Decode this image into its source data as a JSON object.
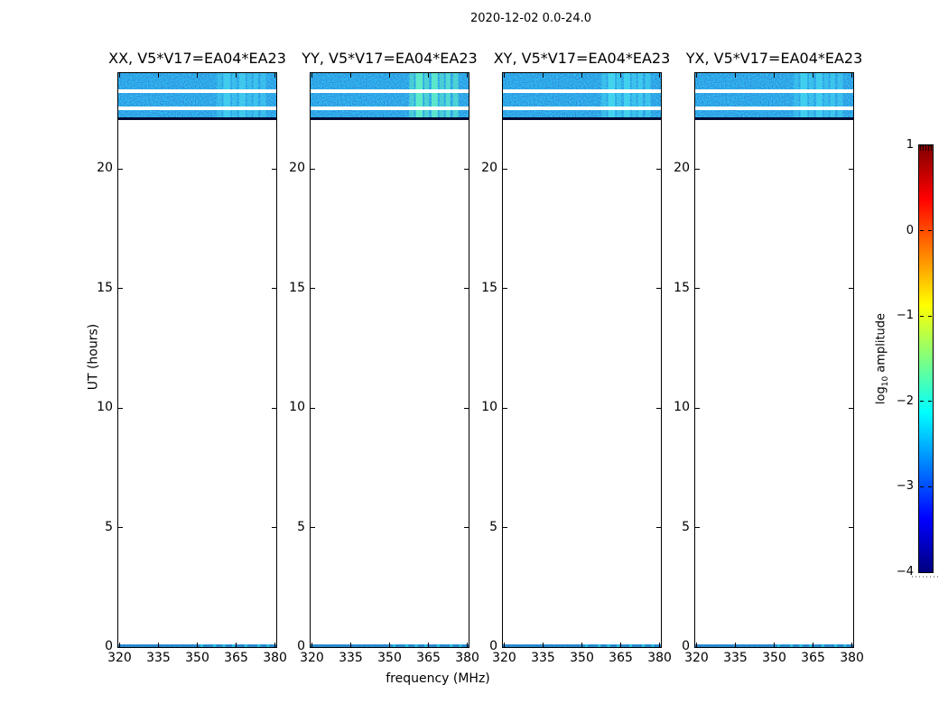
{
  "figure": {
    "suptitle": "2020-12-02 0.0-24.0",
    "xlabel": "frequency (MHz)",
    "ylabel": "UT (hours)",
    "x_ticks": [
      320,
      335,
      350,
      365,
      380
    ],
    "y_ticks": [
      0,
      5,
      10,
      15,
      20
    ],
    "x_range_mhz": [
      319.5,
      380.5
    ],
    "y_range_hours": [
      0,
      24
    ],
    "panels": [
      {
        "id": "XX",
        "title": "XX, V5*V17=EA04*EA23",
        "streak_color": "#45d4f0",
        "streak_gain": 1.0
      },
      {
        "id": "YY",
        "title": "YY, V5*V17=EA04*EA23",
        "streak_color": "#63f0c8",
        "streak_gain": 1.15
      },
      {
        "id": "XY",
        "title": "XY, V5*V17=EA04*EA23",
        "streak_color": "#48dcf0",
        "streak_gain": 1.05
      },
      {
        "id": "YX",
        "title": "YX, V5*V17=EA04*EA23",
        "streak_color": "#45d8f0",
        "streak_gain": 1.0
      }
    ],
    "colorbar": {
      "label_prefix": "log",
      "label_sub": "10",
      "label_suffix": " amplitude",
      "tick_labels": [
        "1",
        "0",
        "−1",
        "−2",
        "−3",
        "−4"
      ],
      "tick_values": [
        1,
        0,
        -1,
        -2,
        -3,
        -4
      ],
      "vmin": -4,
      "vmax": 1
    },
    "spectrogram": {
      "bands": [
        [
          0,
          18
        ],
        [
          22,
          15
        ],
        [
          41,
          8
        ]
      ],
      "gaps": [
        [
          18,
          4
        ],
        [
          37,
          4
        ]
      ],
      "baseline": {
        "y": 49,
        "h": 3,
        "color": "#020830"
      },
      "streaks": [
        {
          "x": 0.625,
          "w": 0.03,
          "o": 0.45
        },
        {
          "x": 0.665,
          "w": 0.045,
          "o": 0.8
        },
        {
          "x": 0.72,
          "w": 0.03,
          "o": 0.5
        },
        {
          "x": 0.765,
          "w": 0.04,
          "o": 0.75
        },
        {
          "x": 0.815,
          "w": 0.03,
          "o": 0.45
        },
        {
          "x": 0.855,
          "w": 0.03,
          "o": 0.6
        },
        {
          "x": 0.9,
          "w": 0.035,
          "o": 0.5
        }
      ],
      "strip_specks": [
        0.52,
        0.6,
        0.66,
        0.72,
        0.8,
        0.88,
        0.94
      ]
    }
  },
  "chart_data": {
    "type": "heatmap",
    "suptitle": "2020-12-02 0.0-24.0",
    "subplots": [
      "XX, V5*V17=EA04*EA23",
      "YY, V5*V17=EA04*EA23",
      "XY, V5*V17=EA04*EA23",
      "YX, V5*V17=EA04*EA23"
    ],
    "xlabel": "frequency (MHz)",
    "ylabel": "UT (hours)",
    "x_ticks": [
      320,
      335,
      350,
      365,
      380
    ],
    "y_ticks": [
      0,
      5,
      10,
      15,
      20
    ],
    "xlim": [
      319.5,
      380.5
    ],
    "ylim": [
      0,
      24
    ],
    "colormap": "jet",
    "colorbar": {
      "label": "log10 amplitude",
      "ticks": [
        1,
        0,
        -1,
        -2,
        -3,
        -4
      ],
      "range": [
        -4,
        1
      ]
    },
    "coverage": {
      "observed_time_blocks_ut_hours": [
        [
          0.0,
          0.15
        ],
        [
          22.05,
          22.4
        ],
        [
          22.55,
          23.2
        ],
        [
          23.3,
          24.0
        ]
      ],
      "background_amplitude_log10": -3.2,
      "bright_rfi_frequency_mhz": [
        362,
        381
      ],
      "bright_rfi_amplitude_log10": -1.8,
      "note": "All four polarization panels show the same pattern: dark-blue noise in three short scans near 22-24 UT with bright cyan/green RFI streaks above ~362 MHz, a thin data strip at 0 UT, and no data elsewhere."
    }
  }
}
